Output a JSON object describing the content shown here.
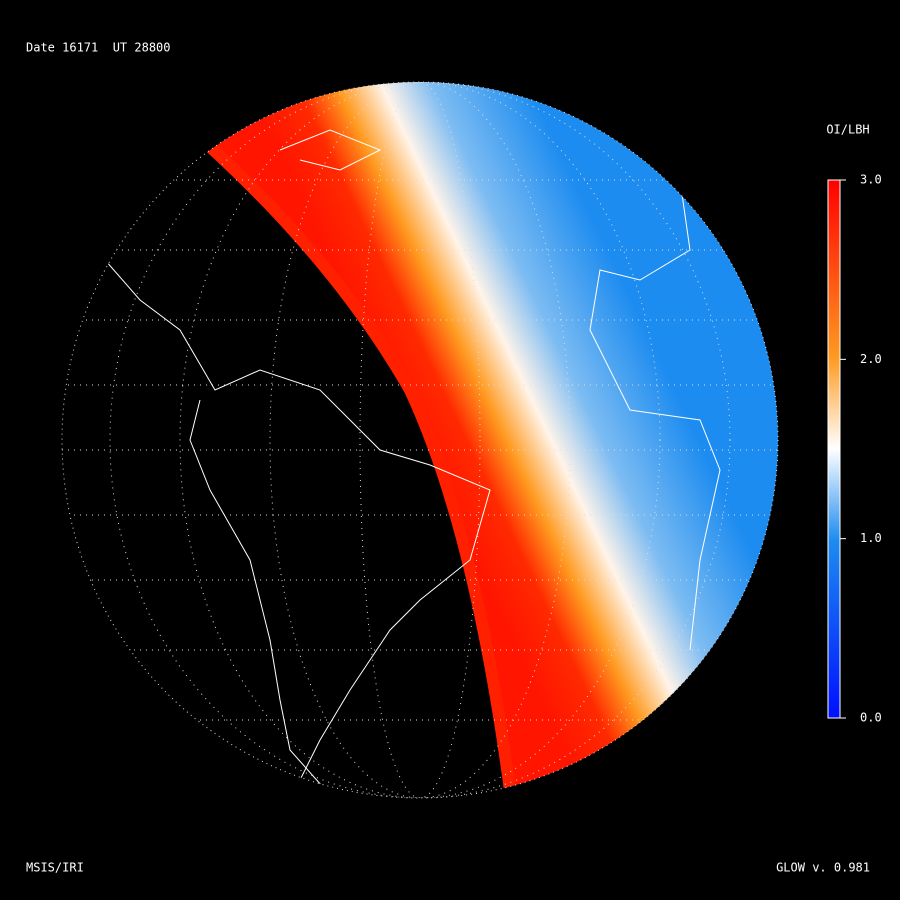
{
  "header": {
    "title": "Date 16171  UT 28800"
  },
  "colorbar": {
    "title": "OI/LBH",
    "range": [
      0,
      3
    ],
    "ticks": [
      {
        "value": 3,
        "label": "3.0"
      },
      {
        "value": 2,
        "label": "2.0"
      },
      {
        "value": 1,
        "label": "1.0"
      },
      {
        "value": 0,
        "label": "0.0"
      }
    ]
  },
  "footer": {
    "left": "MSIS/IRI",
    "right": "GLOW v. 0.981"
  }
}
